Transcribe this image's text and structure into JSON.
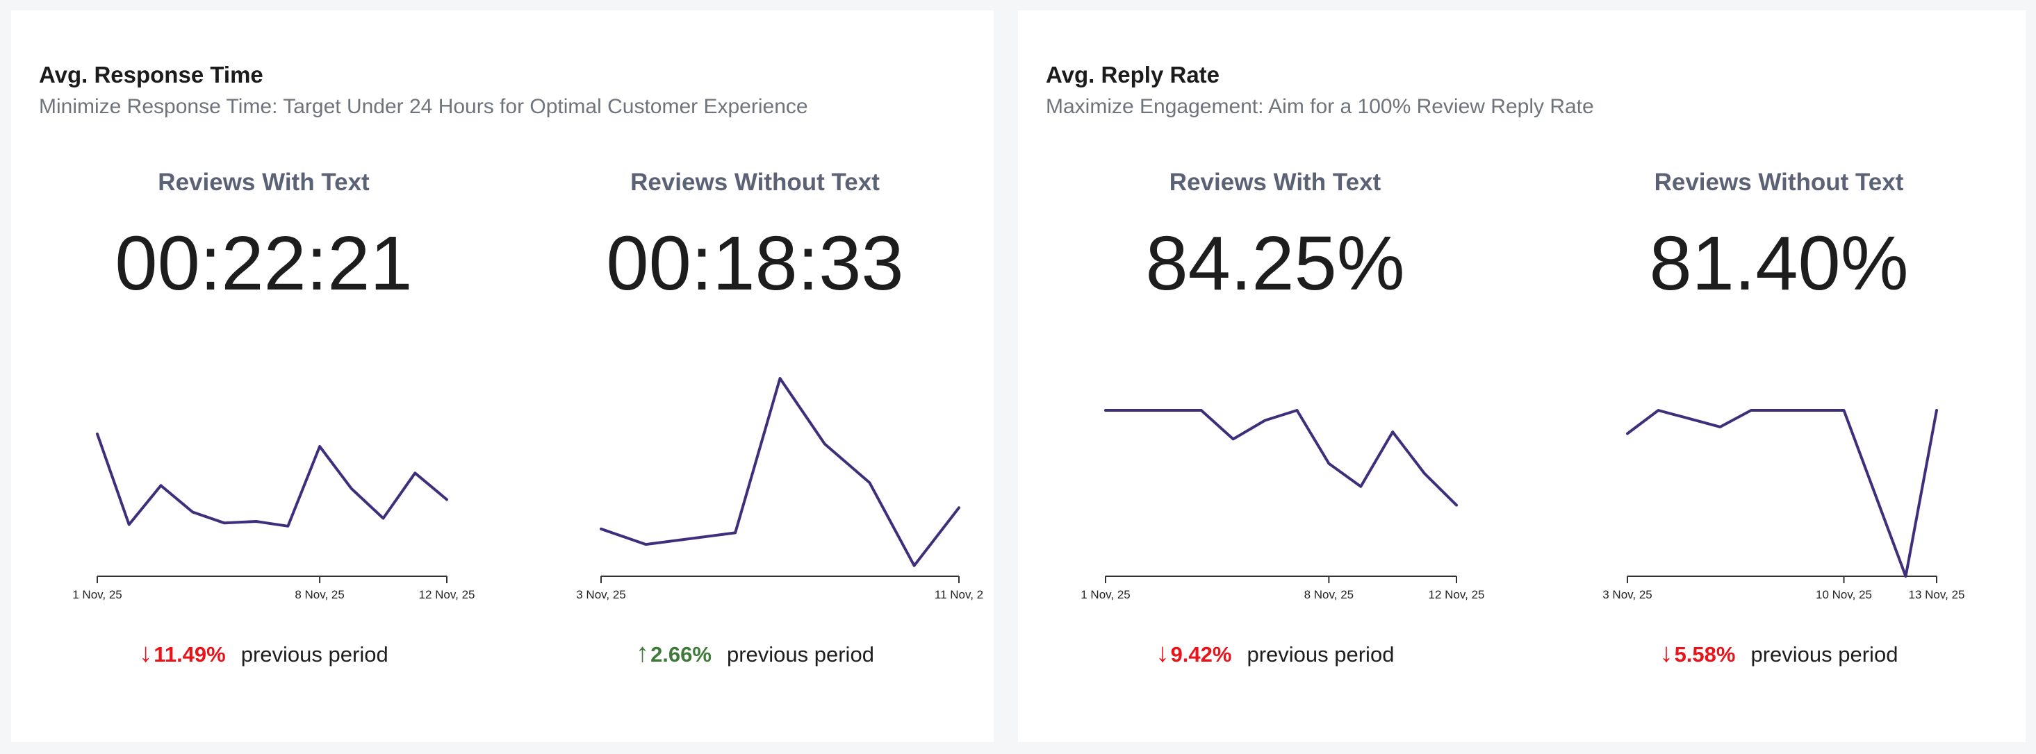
{
  "cards": [
    {
      "title": "Avg. Response Time",
      "subtitle": "Minimize Response Time: Target Under 24 Hours for Optimal Customer Experience",
      "panels": [
        {
          "heading": "Reviews With Text",
          "value": "00:22:21",
          "change": {
            "direction": "down",
            "arrow": "↓",
            "percent": "11.49%",
            "label": "previous period"
          }
        },
        {
          "heading": "Reviews Without Text",
          "value": "00:18:33",
          "change": {
            "direction": "up",
            "arrow": "↑",
            "percent": "2.66%",
            "label": "previous period"
          }
        }
      ]
    },
    {
      "title": "Avg. Reply Rate",
      "subtitle": "Maximize Engagement: Aim for a 100% Review Reply Rate",
      "panels": [
        {
          "heading": "Reviews With Text",
          "value": "84.25%",
          "change": {
            "direction": "down",
            "arrow": "↓",
            "percent": "9.42%",
            "label": "previous period"
          }
        },
        {
          "heading": "Reviews Without Text",
          "value": "81.40%",
          "change": {
            "direction": "down",
            "arrow": "↓",
            "percent": "5.58%",
            "label": "previous period"
          }
        }
      ]
    }
  ],
  "colors": {
    "line": "#3f2f7a",
    "axis": "#333333",
    "down": "#e8141a",
    "up": "#3f7a3a"
  },
  "chart_data": [
    {
      "type": "line",
      "title": "Reviews With Text",
      "x": [
        "2025-11-01",
        "2025-11-02",
        "2025-11-03",
        "2025-11-04",
        "2025-11-05",
        "2025-11-06",
        "2025-11-07",
        "2025-11-08",
        "2025-11-09",
        "2025-11-10",
        "2025-11-11",
        "2025-11-12"
      ],
      "y": [
        80,
        22,
        47,
        30,
        23,
        24,
        21,
        72,
        45,
        26,
        55,
        38
      ],
      "x_tick_labels": [
        "1 Nov, 25",
        "8 Nov, 25",
        "12 Nov, 25"
      ],
      "x_tick_dates": [
        "2025-11-01",
        "2025-11-08",
        "2025-11-12"
      ],
      "xlim": [
        "2025-11-01",
        "2025-11-12"
      ],
      "ylim": [
        0,
        100
      ],
      "grid": false
    },
    {
      "type": "line",
      "title": "Reviews Without Text",
      "x": [
        "2025-11-03",
        "2025-11-04",
        "2025-11-06",
        "2025-11-07",
        "2025-11-08",
        "2025-11-09",
        "2025-11-10",
        "2025-11-11"
      ],
      "y": [
        22,
        14,
        20,
        100,
        66,
        46,
        3,
        33
      ],
      "x_tick_labels": [
        "3 Nov, 25",
        "11 Nov, 2"
      ],
      "x_tick_dates": [
        "2025-11-03",
        "2025-11-11"
      ],
      "xlim": [
        "2025-11-03",
        "2025-11-11"
      ],
      "ylim": [
        0,
        100
      ],
      "grid": false
    },
    {
      "type": "line",
      "title": "Reviews With Text",
      "x": [
        "2025-11-01",
        "2025-11-02",
        "2025-11-03",
        "2025-11-04",
        "2025-11-05",
        "2025-11-06",
        "2025-11-07",
        "2025-11-08",
        "2025-11-09",
        "2025-11-10",
        "2025-11-11",
        "2025-11-12"
      ],
      "y": [
        100,
        100,
        100,
        100,
        80,
        93,
        100,
        63,
        47,
        85,
        56,
        34
      ],
      "x_tick_labels": [
        "1 Nov, 25",
        "8 Nov, 25",
        "12 Nov, 25"
      ],
      "x_tick_dates": [
        "2025-11-01",
        "2025-11-08",
        "2025-11-12"
      ],
      "xlim": [
        "2025-11-01",
        "2025-11-12"
      ],
      "ylim": [
        0,
        100
      ],
      "grid": false
    },
    {
      "type": "line",
      "title": "Reviews Without Text",
      "x": [
        "2025-11-03",
        "2025-11-04",
        "2025-11-06",
        "2025-11-07",
        "2025-11-08",
        "2025-11-09",
        "2025-11-10",
        "2025-11-11",
        "2025-11-12",
        "2025-11-13"
      ],
      "y": [
        86,
        100,
        90,
        100,
        100,
        100,
        100,
        50,
        0,
        100
      ],
      "x_tick_labels": [
        "3 Nov, 25",
        "10 Nov, 25",
        "13 Nov, 25"
      ],
      "x_tick_dates": [
        "2025-11-03",
        "2025-11-10",
        "2025-11-13"
      ],
      "xlim": [
        "2025-11-03",
        "2025-11-13"
      ],
      "ylim": [
        0,
        100
      ],
      "grid": false
    }
  ]
}
